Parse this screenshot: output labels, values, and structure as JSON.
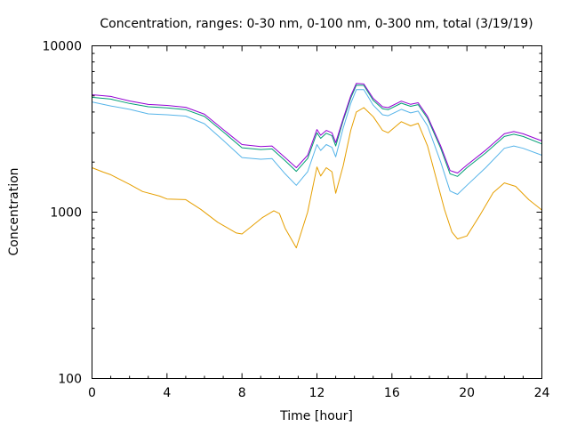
{
  "chart_data": {
    "type": "line",
    "title": "Concentration, ranges: 0-30 nm, 0-100 nm, 0-300 nm, total (3/19/19)",
    "xlabel": "Time [hour]",
    "ylabel": "Concentration",
    "xlim": [
      0,
      24
    ],
    "ylim": [
      100,
      10000
    ],
    "yscale": "log",
    "xticks": [
      0,
      4,
      8,
      12,
      16,
      20,
      24
    ],
    "xtick_labels": [
      "0",
      "4",
      "8",
      "12",
      "16",
      "20",
      "24"
    ],
    "yticks": [
      100,
      1000,
      10000
    ],
    "ytick_labels": [
      "100",
      "1000",
      "10000"
    ],
    "grid": false,
    "legend": "none",
    "series": [
      {
        "name": "total",
        "color": "#9400d3",
        "x": [
          0,
          1,
          2,
          3,
          4,
          5,
          6,
          7,
          8,
          9,
          9.6,
          10.3,
          10.9,
          11.5,
          12.0,
          12.2,
          12.5,
          12.8,
          13.0,
          13.4,
          13.8,
          14.1,
          14.5,
          15.0,
          15.5,
          15.8,
          16.5,
          17.0,
          17.4,
          17.9,
          18.6,
          19.1,
          19.5,
          20.0,
          21.0,
          22.0,
          22.5,
          23.0,
          24.0
        ],
        "values": [
          5080,
          4960,
          4660,
          4440,
          4380,
          4270,
          3880,
          3140,
          2550,
          2480,
          2500,
          2130,
          1850,
          2200,
          3140,
          2900,
          3100,
          3000,
          2620,
          3650,
          5000,
          5950,
          5900,
          4830,
          4300,
          4250,
          4650,
          4450,
          4550,
          3760,
          2500,
          1780,
          1720,
          1920,
          2360,
          2960,
          3050,
          2960,
          2680
        ]
      },
      {
        "name": "0-300 nm",
        "color": "#009e73",
        "x": [
          0,
          1,
          2,
          3,
          4,
          5,
          6,
          7,
          8,
          9,
          9.6,
          10.3,
          10.9,
          11.5,
          12.0,
          12.2,
          12.5,
          12.8,
          13.0,
          13.4,
          13.8,
          14.1,
          14.5,
          15.0,
          15.5,
          15.8,
          16.5,
          17.0,
          17.4,
          17.9,
          18.6,
          19.1,
          19.5,
          20.0,
          21.0,
          22.0,
          22.5,
          23.0,
          24.0
        ],
        "values": [
          4900,
          4780,
          4500,
          4300,
          4240,
          4130,
          3760,
          3040,
          2440,
          2380,
          2400,
          2040,
          1760,
          2100,
          3000,
          2780,
          2980,
          2880,
          2500,
          3550,
          4850,
          5800,
          5780,
          4700,
          4180,
          4130,
          4520,
          4330,
          4430,
          3660,
          2420,
          1700,
          1640,
          1850,
          2270,
          2850,
          2940,
          2850,
          2570
        ]
      },
      {
        "name": "0-100 nm",
        "color": "#56b4e9",
        "x": [
          0,
          1,
          2,
          3,
          4,
          5,
          6,
          7,
          8,
          9,
          9.6,
          10.3,
          10.9,
          11.5,
          12.0,
          12.2,
          12.5,
          12.8,
          13.0,
          13.4,
          13.8,
          14.1,
          14.5,
          15.0,
          15.5,
          15.8,
          16.5,
          17.0,
          17.4,
          17.9,
          18.6,
          19.1,
          19.5,
          20.0,
          21.0,
          22.0,
          22.5,
          23.0,
          24.0
        ],
        "values": [
          4600,
          4350,
          4150,
          3900,
          3850,
          3780,
          3400,
          2700,
          2130,
          2080,
          2100,
          1700,
          1450,
          1750,
          2550,
          2350,
          2550,
          2450,
          2150,
          3200,
          4500,
          5450,
          5450,
          4400,
          3850,
          3800,
          4150,
          3950,
          4050,
          3300,
          2000,
          1340,
          1280,
          1450,
          1850,
          2420,
          2500,
          2420,
          2200
        ]
      },
      {
        "name": "0-30 nm",
        "color": "#e69f00",
        "x": [
          0,
          0.6,
          1.0,
          2.0,
          2.7,
          3.6,
          4.0,
          5.0,
          5.8,
          6.7,
          7.7,
          8.0,
          8.5,
          9.1,
          9.7,
          10.0,
          10.3,
          10.9,
          11.5,
          12.0,
          12.2,
          12.5,
          12.8,
          13.0,
          13.4,
          13.8,
          14.1,
          14.5,
          15.0,
          15.5,
          15.8,
          16.5,
          17.0,
          17.4,
          17.9,
          18.5,
          18.8,
          19.2,
          19.5,
          20.0,
          20.7,
          21.4,
          22.0,
          22.6,
          23.3,
          24.0
        ],
        "values": [
          1850,
          1740,
          1680,
          1470,
          1330,
          1250,
          1200,
          1190,
          1040,
          870,
          750,
          740,
          820,
          930,
          1020,
          980,
          800,
          610,
          1000,
          1870,
          1650,
          1850,
          1750,
          1300,
          1900,
          3100,
          4000,
          4250,
          3750,
          3100,
          3000,
          3500,
          3300,
          3420,
          2500,
          1400,
          1040,
          760,
          690,
          720,
          960,
          1310,
          1500,
          1430,
          1190,
          1030
        ]
      }
    ]
  }
}
